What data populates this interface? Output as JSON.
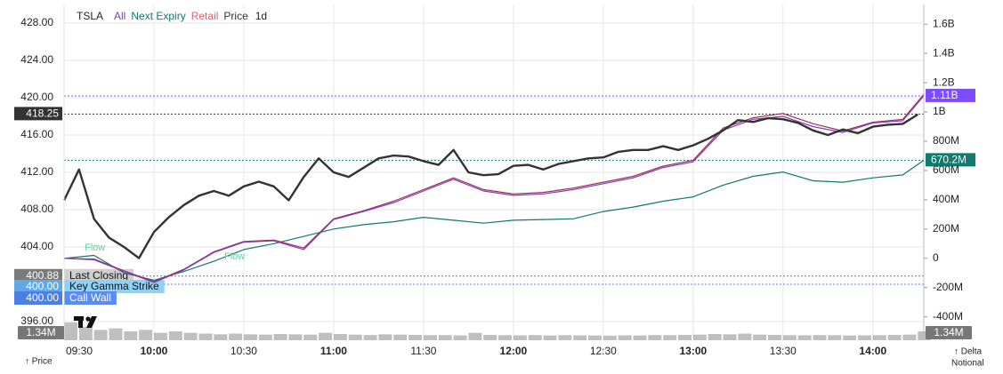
{
  "chart_data": {
    "type": "line",
    "symbol": "TSLA",
    "legend": [
      "All",
      "Next Expiry",
      "Retail",
      "Price"
    ],
    "legend_colors": [
      "#7b3fc4",
      "#0f7a6e",
      "#e0606a",
      "#333333"
    ],
    "interval": "1d",
    "y_label": "↑ Price",
    "y2_label": [
      "↑ Delta",
      "Notional"
    ],
    "annotations": [
      "Flow",
      "Flow"
    ],
    "xlim": [
      "09:30",
      "14:17"
    ],
    "xticks": [
      "09:30",
      "10:00",
      "10:30",
      "11:00",
      "11:30",
      "12:00",
      "12:30",
      "13:00",
      "13:30",
      "14:00"
    ],
    "ylim": [
      394,
      430
    ],
    "yticks": [
      {
        "value": 428,
        "label": "428.00"
      },
      {
        "value": 424,
        "label": "424.00"
      },
      {
        "value": 420,
        "label": "420.00"
      },
      {
        "value": 416,
        "label": "416.00"
      },
      {
        "value": 412,
        "label": "412.00"
      },
      {
        "value": 408,
        "label": "408.00"
      },
      {
        "value": 404,
        "label": "404.00"
      },
      {
        "value": 396,
        "label": "396.00"
      }
    ],
    "y2lim": [
      -560000000,
      1735000000
    ],
    "y2ticks": [
      {
        "value": 1600000000,
        "label": "1.6B"
      },
      {
        "value": 1400000000,
        "label": "1.4B"
      },
      {
        "value": 1200000000,
        "label": "1.2B"
      },
      {
        "value": 1000000000,
        "label": "1B"
      },
      {
        "value": 800000000,
        "label": "800M"
      },
      {
        "value": 600000000,
        "label": "600M"
      },
      {
        "value": 400000000,
        "label": "400M"
      },
      {
        "value": 200000000,
        "label": "200M"
      },
      0,
      {
        "value": -200000000,
        "label": "-200M"
      },
      {
        "value": -400000000,
        "label": "-400M"
      }
    ],
    "grid": true,
    "series": [
      {
        "name": "Price",
        "color": "#333333",
        "axis": "y",
        "x": [
          "09:30",
          "09:35",
          "09:40",
          "09:45",
          "09:50",
          "09:55",
          "10:00",
          "10:05",
          "10:10",
          "10:15",
          "10:20",
          "10:25",
          "10:30",
          "10:35",
          "10:40",
          "10:45",
          "10:50",
          "10:55",
          "11:00",
          "11:05",
          "11:10",
          "11:15",
          "11:20",
          "11:25",
          "11:30",
          "11:35",
          "11:40",
          "11:45",
          "11:50",
          "11:55",
          "12:00",
          "12:05",
          "12:10",
          "12:15",
          "12:20",
          "12:25",
          "12:30",
          "12:35",
          "12:40",
          "12:45",
          "12:50",
          "12:55",
          "13:00",
          "13:05",
          "13:10",
          "13:15",
          "13:20",
          "13:25",
          "13:30",
          "13:35",
          "13:40",
          "13:45",
          "13:50",
          "13:55",
          "14:00",
          "14:05",
          "14:10",
          "14:15"
        ],
        "values": [
          409.0,
          412.3,
          407.0,
          405.0,
          404.0,
          402.8,
          405.6,
          407.2,
          408.5,
          409.5,
          410.0,
          409.5,
          410.5,
          411.0,
          410.5,
          409.0,
          411.5,
          413.5,
          412.0,
          411.5,
          412.5,
          413.5,
          413.8,
          413.7,
          413.2,
          412.8,
          414.4,
          412.0,
          411.7,
          411.8,
          412.7,
          412.8,
          412.3,
          412.9,
          413.2,
          413.5,
          413.6,
          414.2,
          414.4,
          414.4,
          414.8,
          414.4,
          414.9,
          415.6,
          416.5,
          417.6,
          417.4,
          417.8,
          417.7,
          417.3,
          416.5,
          416.0,
          416.6,
          416.2,
          416.9,
          417.1,
          417.2,
          418.2
        ]
      },
      {
        "name": "All",
        "color": "#7b3fc4",
        "axis": "y2",
        "x": [
          "09:30",
          "09:40",
          "09:50",
          "10:00",
          "10:10",
          "10:20",
          "10:30",
          "10:40",
          "10:50",
          "11:00",
          "11:10",
          "11:20",
          "11:30",
          "11:40",
          "11:50",
          "12:00",
          "12:10",
          "12:20",
          "12:30",
          "12:40",
          "12:50",
          "13:00",
          "13:10",
          "13:20",
          "13:30",
          "13:40",
          "13:50",
          "14:00",
          "14:10",
          "14:17"
        ],
        "values": [
          0,
          -10000000,
          -90000000,
          -165000000,
          -80000000,
          40000000,
          110000000,
          120000000,
          60000000,
          265000000,
          320000000,
          380000000,
          460000000,
          540000000,
          460000000,
          430000000,
          440000000,
          470000000,
          510000000,
          550000000,
          620000000,
          660000000,
          875000000,
          950000000,
          970000000,
          900000000,
          860000000,
          925000000,
          940000000,
          1110000000
        ]
      },
      {
        "name": "Retail",
        "color": "#a0304a",
        "axis": "y2",
        "x": [
          "09:30",
          "09:40",
          "09:50",
          "10:00",
          "10:10",
          "10:20",
          "10:30",
          "10:40",
          "10:50",
          "11:00",
          "11:10",
          "11:20",
          "11:30",
          "11:40",
          "11:50",
          "12:00",
          "12:10",
          "12:20",
          "12:30",
          "12:40",
          "12:50",
          "13:00",
          "13:10",
          "13:20",
          "13:30",
          "13:40",
          "13:50",
          "14:00",
          "14:10",
          "14:17"
        ],
        "values": [
          0,
          -5000000,
          -85000000,
          -160000000,
          -75000000,
          45000000,
          115000000,
          125000000,
          70000000,
          270000000,
          325000000,
          390000000,
          470000000,
          550000000,
          470000000,
          440000000,
          450000000,
          480000000,
          520000000,
          560000000,
          630000000,
          670000000,
          890000000,
          960000000,
          990000000,
          920000000,
          870000000,
          930000000,
          950000000,
          1120000000
        ]
      },
      {
        "name": "Next Expiry",
        "color": "#0f7a6e",
        "axis": "y2",
        "x": [
          "09:30",
          "09:40",
          "09:50",
          "10:00",
          "10:10",
          "10:20",
          "10:30",
          "10:40",
          "10:50",
          "11:00",
          "11:10",
          "11:20",
          "11:30",
          "11:40",
          "11:50",
          "12:00",
          "12:10",
          "12:20",
          "12:30",
          "12:40",
          "12:50",
          "13:00",
          "13:10",
          "13:20",
          "13:30",
          "13:40",
          "13:50",
          "14:00",
          "14:10",
          "14:17"
        ],
        "values": [
          0,
          20000000,
          -100000000,
          -150000000,
          -90000000,
          -20000000,
          60000000,
          100000000,
          150000000,
          200000000,
          230000000,
          250000000,
          280000000,
          260000000,
          240000000,
          260000000,
          265000000,
          270000000,
          320000000,
          350000000,
          390000000,
          420000000,
          500000000,
          560000000,
          590000000,
          530000000,
          520000000,
          550000000,
          570000000,
          670200000
        ]
      }
    ],
    "volume": {
      "color": "#8a8a8a",
      "vlim": [
        0,
        3000000
      ],
      "values": [
        1200000,
        900000,
        700000,
        800000,
        600000,
        700000,
        500000,
        600000,
        500000,
        450000,
        400000,
        450000,
        400000,
        380000,
        420000,
        400000,
        380000,
        500000,
        420000,
        380000,
        350000,
        400000,
        380000,
        360000,
        340000,
        350000,
        330000,
        500000,
        360000,
        340000,
        330000,
        350000,
        320000,
        340000,
        330000,
        320000,
        310000,
        330000,
        320000,
        350000,
        340000,
        360000,
        380000,
        420000,
        400000,
        450000,
        380000,
        360000,
        340000,
        330000,
        350000,
        340000,
        320000,
        330000,
        340000,
        360000,
        380000,
        600000
      ],
      "current": {
        "value": 1340000,
        "label": "1.34M"
      }
    },
    "levels": [
      {
        "value": 418.25,
        "label": "418.25",
        "axis": "y",
        "color": "#333333"
      },
      {
        "value": 400.88,
        "label": "400.88",
        "axis": "y",
        "color": "#7a7a7a",
        "name": "Last Closing",
        "name_color": "#cfcfcf",
        "name_text_color": "#111111"
      },
      {
        "value": 400.0,
        "label": "400.00",
        "axis": "y",
        "color": "#5fa8e8",
        "name": "Key Gamma Strike",
        "name_color": "#8fd0f7",
        "name_text_color": "#111111"
      },
      {
        "value": 400.0,
        "label": "400.00",
        "axis": "y",
        "color": "#4c7fe6",
        "name": "Call Wall",
        "name_color": "#5b8cf0",
        "name_text_color": "#ffffff"
      },
      {
        "value": 1110000000,
        "label": "1.11B",
        "axis": "y2",
        "color": "#7c4dff"
      },
      {
        "value": 670200000,
        "label": "670.2M",
        "axis": "y2",
        "color": "#0f7a6e"
      }
    ]
  }
}
